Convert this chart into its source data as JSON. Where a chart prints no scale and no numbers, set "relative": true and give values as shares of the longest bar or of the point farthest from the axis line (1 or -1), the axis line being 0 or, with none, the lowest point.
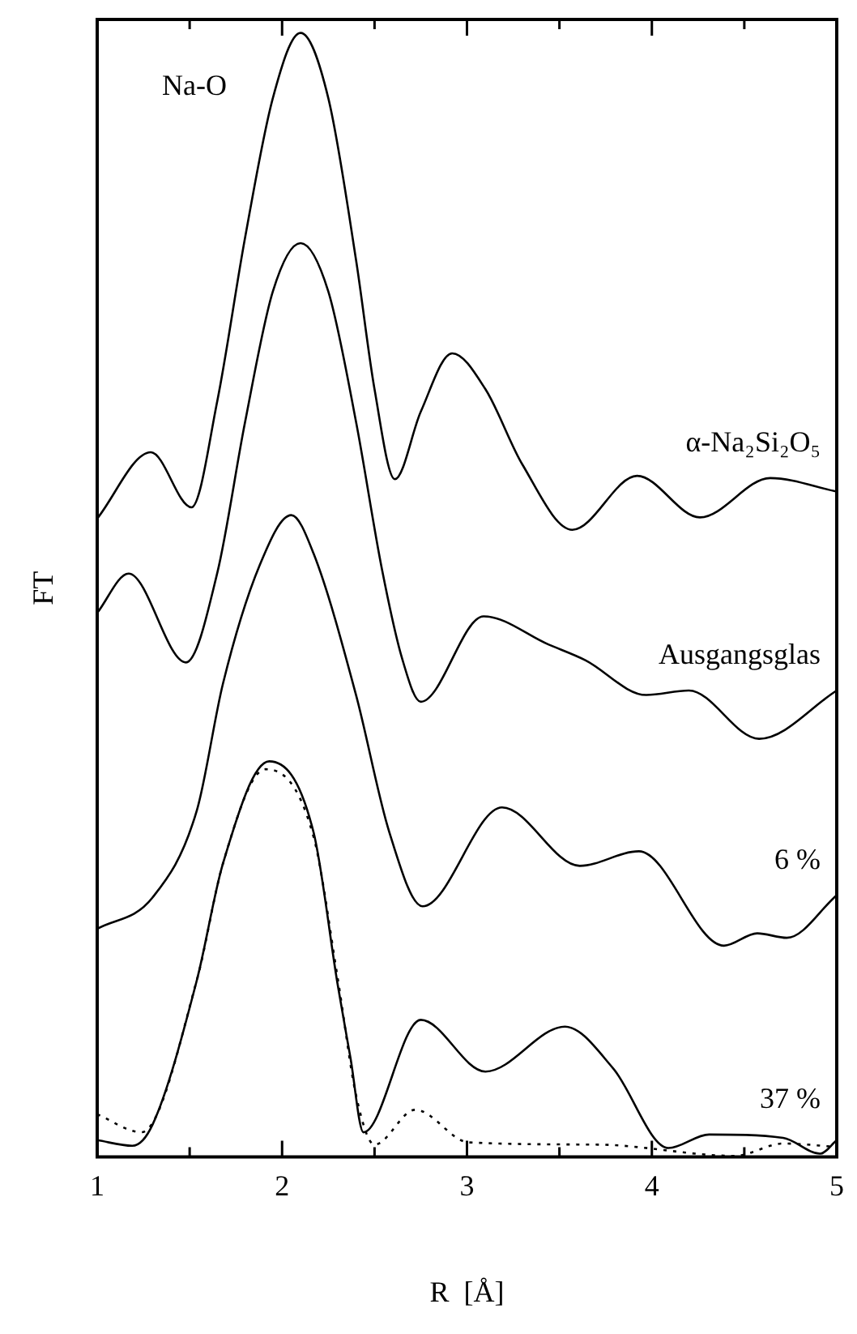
{
  "chart_data": {
    "type": "line",
    "relative": true,
    "xlabel": "R  [Å]",
    "ylabel": "FT",
    "xlim": [
      1,
      5
    ],
    "xticks": [
      1,
      {
        "value": 1.5,
        "label": null
      },
      2,
      {
        "value": 2.5,
        "label": null
      },
      3,
      {
        "value": 3.5,
        "label": null
      },
      4,
      {
        "value": 4.5,
        "label": null
      },
      5
    ],
    "grid": false,
    "legend": false,
    "marker": "none",
    "annotations": [
      "Na-O"
    ],
    "series": [
      {
        "name": "α-Na₂Si₂O₅",
        "color": "#000000",
        "line_style": "solid",
        "x": [
          1.0,
          1.29,
          1.51,
          1.65,
          1.8,
          1.95,
          2.1,
          2.25,
          2.4,
          2.5,
          2.61,
          2.75,
          2.92,
          3.1,
          3.3,
          3.57,
          3.92,
          4.26,
          4.64,
          5.0
        ],
        "values": [
          0.568,
          0.627,
          0.578,
          0.673,
          0.818,
          0.942,
          1.0,
          0.942,
          0.798,
          0.683,
          0.603,
          0.663,
          0.715,
          0.683,
          0.616,
          0.558,
          0.606,
          0.569,
          0.604,
          0.592
        ]
      },
      {
        "name": "Ausgangsglas",
        "color": "#000000",
        "line_style": "solid",
        "x": [
          1.0,
          1.17,
          1.48,
          1.65,
          1.8,
          1.95,
          2.1,
          2.25,
          2.4,
          2.54,
          2.65,
          2.75,
          3.09,
          3.44,
          3.64,
          3.97,
          4.2,
          4.58,
          5.0
        ],
        "values": [
          0.484,
          0.519,
          0.44,
          0.52,
          0.654,
          0.77,
          0.813,
          0.77,
          0.654,
          0.523,
          0.443,
          0.405,
          0.481,
          0.456,
          0.442,
          0.411,
          0.415,
          0.372,
          0.415
        ]
      },
      {
        "name": "6 %",
        "color": "#000000",
        "line_style": "solid",
        "x": [
          1.0,
          1.3,
          1.54,
          1.68,
          1.88,
          2.05,
          2.17,
          2.4,
          2.58,
          2.76,
          3.19,
          3.61,
          3.93,
          4.39,
          4.57,
          4.73,
          5.0
        ],
        "values": [
          0.203,
          0.231,
          0.309,
          0.421,
          0.527,
          0.571,
          0.537,
          0.411,
          0.289,
          0.223,
          0.311,
          0.259,
          0.272,
          0.188,
          0.199,
          0.195,
          0.233
        ]
      },
      {
        "name": "37 %",
        "color": "#000000",
        "line_style": "solid",
        "x": [
          1.0,
          1.19,
          1.3,
          1.54,
          1.68,
          1.93,
          2.17,
          2.3,
          2.37,
          2.44,
          2.75,
          3.1,
          3.53,
          3.79,
          4.09,
          4.31,
          4.71,
          4.91,
          5.0
        ],
        "values": [
          0.015,
          0.01,
          0.029,
          0.158,
          0.261,
          0.352,
          0.289,
          0.154,
          0.088,
          0.022,
          0.122,
          0.076,
          0.116,
          0.079,
          0.008,
          0.02,
          0.017,
          0.003,
          0.015
        ]
      },
      {
        "color": "#000000",
        "line_style": "dotted",
        "x": [
          1.0,
          1.24,
          1.54,
          1.68,
          1.91,
          2.17,
          2.3,
          2.4,
          2.5,
          2.72,
          3.01,
          3.71,
          4.45,
          4.71,
          5.0
        ],
        "values": [
          0.038,
          0.022,
          0.158,
          0.261,
          0.345,
          0.285,
          0.16,
          0.055,
          0.011,
          0.042,
          0.013,
          0.011,
          0.001,
          0.012,
          0.009
        ]
      }
    ]
  }
}
